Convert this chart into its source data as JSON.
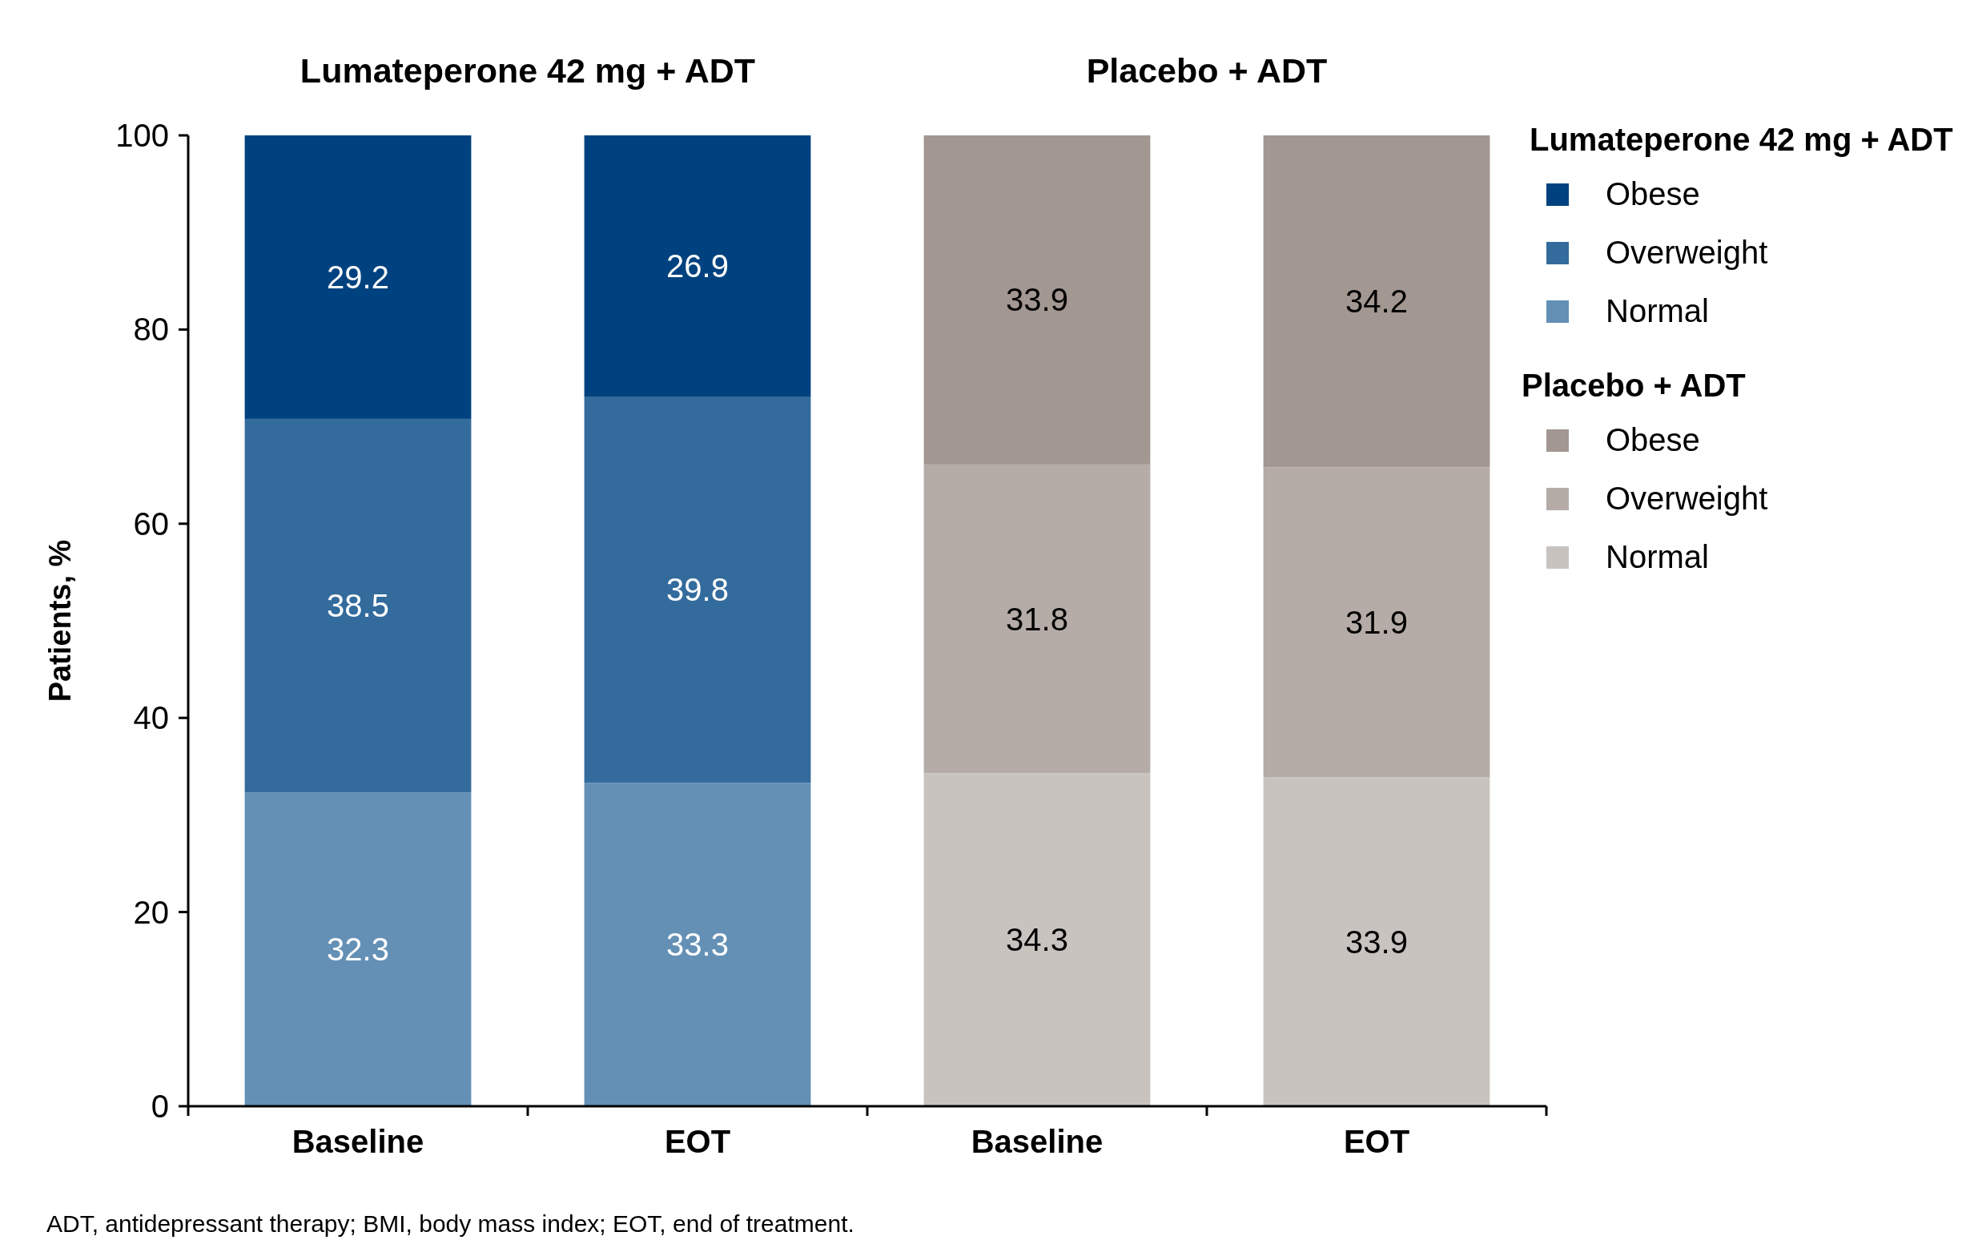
{
  "chart_data": {
    "type": "bar",
    "stacked": true,
    "ylabel": "Patients, %",
    "categories": [
      "Baseline",
      "EOT",
      "Baseline",
      "EOT"
    ],
    "series": [
      {
        "name": "Normal",
        "color": "#6490b6",
        "values": [
          32.3,
          33.3,
          null,
          null
        ]
      },
      {
        "name": "Overweight",
        "color": "#336b9c",
        "values": [
          38.5,
          39.8,
          null,
          null
        ]
      },
      {
        "name": "Obese",
        "color": "#00427f",
        "values": [
          29.2,
          26.9,
          null,
          null
        ]
      },
      {
        "name": "Normal",
        "color": "#c8c3bf",
        "values": [
          null,
          null,
          34.3,
          33.9
        ]
      },
      {
        "name": "Overweight",
        "color": "#b5aca7",
        "values": [
          null,
          null,
          31.8,
          31.9
        ]
      },
      {
        "name": "Obese",
        "color": "#a39791",
        "values": [
          null,
          null,
          33.9,
          34.2
        ]
      }
    ],
    "ylim": [
      0,
      100
    ],
    "yticks": [
      0,
      20,
      40,
      60,
      80,
      100
    ],
    "grid": false,
    "legend": "right",
    "data_labels": true,
    "annotations": [
      "Lumateperone 42 mg + ADT",
      "Placebo + ADT",
      "ADT, antidepressant therapy; BMI, body mass index; EOT, end of treatment."
    ]
  }
}
